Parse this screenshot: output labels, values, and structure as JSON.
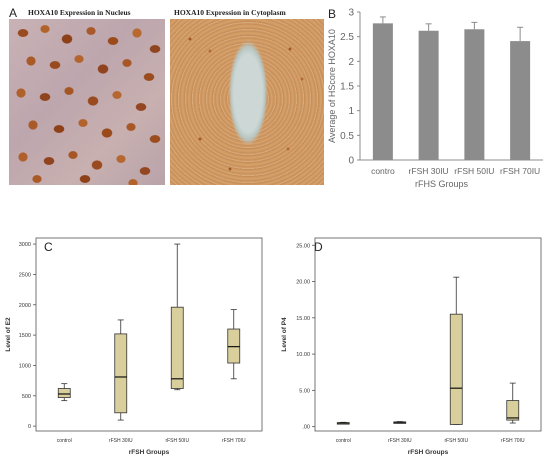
{
  "panels": {
    "A": {
      "letter": "A",
      "title_nucleus": "HOXA10 Expression in Nucleus",
      "title_cytoplasm": "HOXA10 Expression in Cytoplasm"
    },
    "B": {
      "letter": "B"
    },
    "C": {
      "letter": "C"
    },
    "D": {
      "letter": "D"
    }
  },
  "colors": {
    "bar": "#8c8c8c",
    "box_fill": "#d9cf9c",
    "box_stroke": "#333333",
    "axis": "#8c8c8c"
  },
  "chart_data": [
    {
      "id": "B",
      "type": "bar",
      "title": "",
      "xlabel": "rFHS Groups",
      "ylabel": "Average of HScore HOXA10",
      "categories": [
        "contro",
        "rFSH 30IU",
        "rFSH 50IU",
        "rFSH 70IU"
      ],
      "values": [
        2.77,
        2.62,
        2.65,
        2.41
      ],
      "error": [
        0.13,
        0.14,
        0.14,
        0.28
      ],
      "ylim": [
        0,
        3
      ],
      "yticks": [
        0,
        0.5,
        1,
        1.5,
        2,
        2.5,
        3
      ],
      "ytick_labels": [
        "0",
        "0.5",
        "1",
        "1.5",
        "2",
        "2.5",
        "3"
      ],
      "grid": false
    },
    {
      "id": "C",
      "type": "box",
      "title": "",
      "xlabel": "rFSH Groups",
      "ylabel": "Level of E2",
      "categories": [
        "control",
        "rFSH 30IU",
        "rFSH 50IU",
        "rFSH 70IU"
      ],
      "boxes": [
        {
          "min": 420,
          "q1": 470,
          "median": 530,
          "q3": 620,
          "max": 700
        },
        {
          "min": 100,
          "q1": 220,
          "median": 810,
          "q3": 1520,
          "max": 1750
        },
        {
          "min": 600,
          "q1": 620,
          "median": 780,
          "q3": 1960,
          "max": 3000
        },
        {
          "min": 780,
          "q1": 1040,
          "median": 1310,
          "q3": 1600,
          "max": 1920
        }
      ],
      "ylim": [
        -80,
        3100
      ],
      "yticks": [
        0,
        500,
        1000,
        1500,
        2000,
        2500,
        3000
      ],
      "ytick_labels": [
        "0",
        "500",
        "1000",
        "1500",
        "2000",
        "2500",
        "3000"
      ],
      "grid": false
    },
    {
      "id": "D",
      "type": "box",
      "title": "",
      "xlabel": "rFSH Groups",
      "ylabel": "Level of P4",
      "categories": [
        "control",
        "rFSH 30IU",
        "rFSH 50IU",
        "rFSH 70IU"
      ],
      "boxes": [
        {
          "min": 0.35,
          "q1": 0.42,
          "median": 0.5,
          "q3": 0.55,
          "max": 0.6
        },
        {
          "min": 0.48,
          "q1": 0.52,
          "median": 0.6,
          "q3": 0.65,
          "max": 0.7
        },
        {
          "min": 0.3,
          "q1": 0.3,
          "median": 5.3,
          "q3": 15.5,
          "max": 20.6
        },
        {
          "min": 0.5,
          "q1": 0.9,
          "median": 1.2,
          "q3": 3.6,
          "max": 6.0
        }
      ],
      "ylim": [
        -0.6,
        26
      ],
      "yticks": [
        0,
        5,
        10,
        15,
        20,
        25
      ],
      "ytick_labels": [
        ".00",
        "5.00",
        "10.00",
        "15.00",
        "20.00",
        "25.00"
      ],
      "grid": false
    }
  ]
}
